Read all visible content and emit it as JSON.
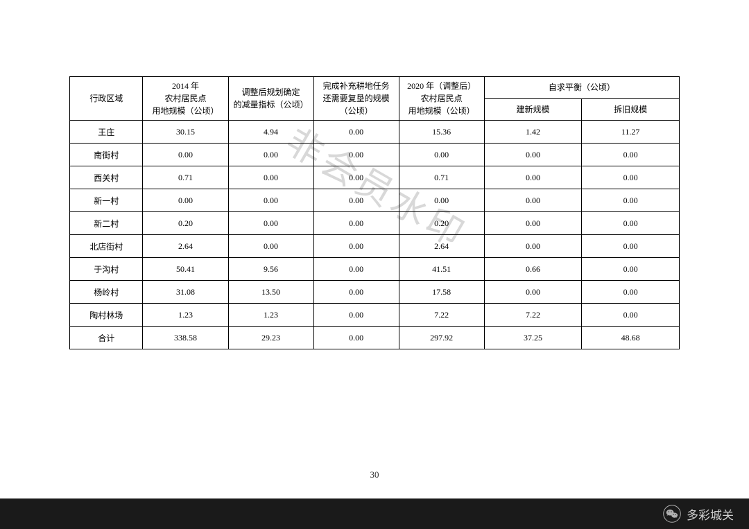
{
  "table": {
    "headers": {
      "region": "行政区域",
      "y2014": "2014 年\n农村居民点\n用地规模（公顷）",
      "adjust": "调整后规划确定\n的减量指标（公顷）",
      "replenish": "完成补充耕地任务\n还需要复垦的规模\n（公顷）",
      "y2020": "2020 年（调整后）\n农村居民点\n用地规模（公顷）",
      "balance_group": "自求平衡（公顷）",
      "balance_new": "建新规模",
      "balance_old": "拆旧规模"
    },
    "rows": [
      {
        "region": "王庄",
        "y2014": "30.15",
        "adjust": "4.94",
        "replenish": "0.00",
        "y2020": "15.36",
        "bnew": "1.42",
        "bold": "11.27"
      },
      {
        "region": "南街村",
        "y2014": "0.00",
        "adjust": "0.00",
        "replenish": "0.00",
        "y2020": "0.00",
        "bnew": "0.00",
        "bold": "0.00"
      },
      {
        "region": "西关村",
        "y2014": "0.71",
        "adjust": "0.00",
        "replenish": "0.00",
        "y2020": "0.71",
        "bnew": "0.00",
        "bold": "0.00"
      },
      {
        "region": "新一村",
        "y2014": "0.00",
        "adjust": "0.00",
        "replenish": "0.00",
        "y2020": "0.00",
        "bnew": "0.00",
        "bold": "0.00"
      },
      {
        "region": "新二村",
        "y2014": "0.20",
        "adjust": "0.00",
        "replenish": "0.00",
        "y2020": "0.20",
        "bnew": "0.00",
        "bold": "0.00"
      },
      {
        "region": "北店街村",
        "y2014": "2.64",
        "adjust": "0.00",
        "replenish": "0.00",
        "y2020": "2.64",
        "bnew": "0.00",
        "bold": "0.00"
      },
      {
        "region": "于沟村",
        "y2014": "50.41",
        "adjust": "9.56",
        "replenish": "0.00",
        "y2020": "41.51",
        "bnew": "0.66",
        "bold": "0.00"
      },
      {
        "region": "杨岭村",
        "y2014": "31.08",
        "adjust": "13.50",
        "replenish": "0.00",
        "y2020": "17.58",
        "bnew": "0.00",
        "bold": "0.00"
      },
      {
        "region": "陶村林场",
        "y2014": "1.23",
        "adjust": "1.23",
        "replenish": "0.00",
        "y2020": "7.22",
        "bnew": "7.22",
        "bold": "0.00"
      },
      {
        "region": "合计",
        "y2014": "338.58",
        "adjust": "29.23",
        "replenish": "0.00",
        "y2020": "297.92",
        "bnew": "37.25",
        "bold": "48.68"
      }
    ]
  },
  "watermark": "非会员水印",
  "page_number": "30",
  "bottom_bar": {
    "label": "多彩城关"
  },
  "style": {
    "border_color": "#000000",
    "bg_color": "#ffffff",
    "watermark_color": "#d8d8d8",
    "bottom_bar_bg": "#1a1a1a",
    "bottom_bar_text": "#d0d0d0",
    "font_size_header": 12,
    "font_size_cell": 12
  }
}
